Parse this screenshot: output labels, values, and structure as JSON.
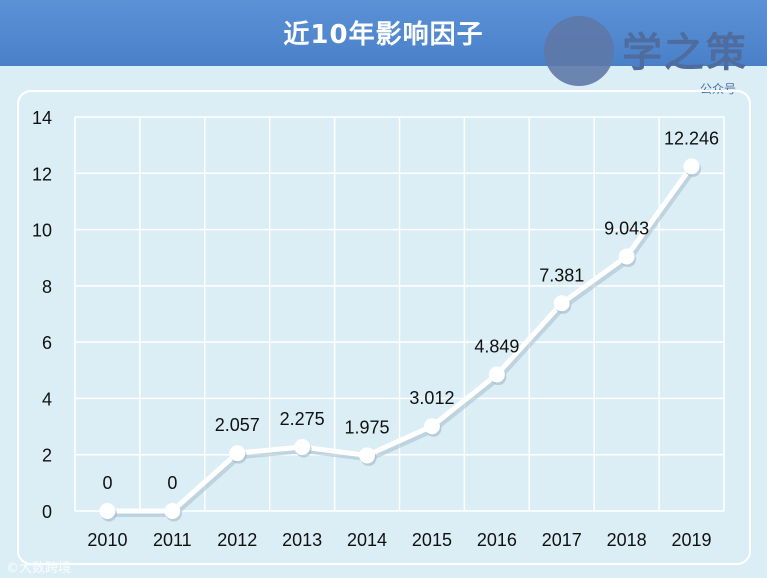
{
  "header": {
    "title": "近10年影响因子"
  },
  "logo": {
    "name": "学之策",
    "subtitle": "公众号"
  },
  "watermark": "©大数跨境",
  "colors": {
    "title_bar": "#4f86cc",
    "background": "#dbeef6",
    "line": "#ffffff",
    "grid": "#ffffff"
  },
  "chart_data": {
    "type": "line",
    "title": "近10年影响因子",
    "xlabel": "",
    "ylabel": "",
    "categories": [
      "2010",
      "2011",
      "2012",
      "2013",
      "2014",
      "2015",
      "2016",
      "2017",
      "2018",
      "2019"
    ],
    "values": [
      0,
      0,
      2.057,
      2.275,
      1.975,
      3.012,
      4.849,
      7.381,
      9.043,
      12.246
    ],
    "data_labels": [
      "0",
      "0",
      "2.057",
      "2.275",
      "1.975",
      "3.012",
      "4.849",
      "7.381",
      "9.043",
      "12.246"
    ],
    "ylim": [
      0,
      14
    ],
    "yticks": [
      0,
      2,
      4,
      6,
      8,
      10,
      12,
      14
    ],
    "grid": true,
    "legend": "none"
  }
}
